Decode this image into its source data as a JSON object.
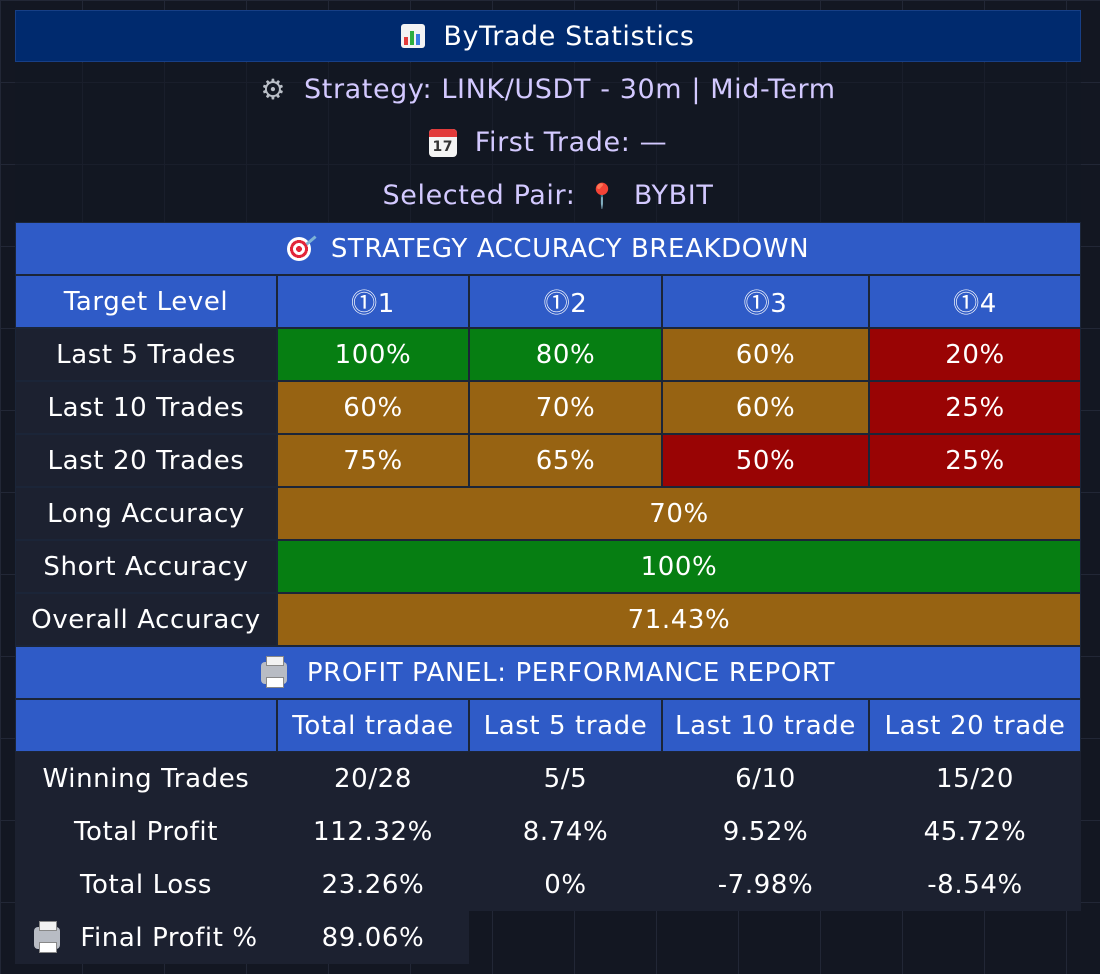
{
  "header": {
    "title": "ByTrade Statistics",
    "strategy": "Strategy: LINK/USDT - 30m | Mid-Term",
    "first_trade": "First Trade: —",
    "selected_pair_label": "Selected Pair:",
    "selected_pair_value": "BYBIT"
  },
  "accuracy": {
    "title": "STRATEGY ACCURACY BREAKDOWN",
    "columns": [
      "Target Level",
      "⓵1",
      "⓵2",
      "⓵3",
      "⓵4"
    ],
    "rows": [
      {
        "label": "Last 5 Trades",
        "values": [
          "100%",
          "80%",
          "60%",
          "20%"
        ]
      },
      {
        "label": "Last 10 Trades",
        "values": [
          "60%",
          "70%",
          "60%",
          "25%"
        ]
      },
      {
        "label": "Last 20 Trades",
        "values": [
          "75%",
          "65%",
          "50%",
          "25%"
        ]
      }
    ],
    "long_label": "Long Accuracy",
    "long_value": "70%",
    "short_label": "Short Accuracy",
    "short_value": "100%",
    "overall_label": "Overall Accuracy",
    "overall_value": "71.43%"
  },
  "profit": {
    "title": "PROFIT PANEL: PERFORMANCE REPORT",
    "columns": [
      "",
      "Total tradae",
      "Last 5 trade",
      "Last 10 trade",
      "Last 20 trade"
    ],
    "rows": [
      {
        "label": "Winning Trades",
        "values": [
          "20/28",
          "5/5",
          "6/10",
          "15/20"
        ]
      },
      {
        "label": "Total Profit",
        "values": [
          "112.32%",
          "8.74%",
          "9.52%",
          "45.72%"
        ]
      },
      {
        "label": "Total Loss",
        "values": [
          "23.26%",
          "0%",
          "-7.98%",
          "-8.54%"
        ]
      }
    ],
    "final_label": "Final Profit %",
    "final_value": "89.06%"
  },
  "icons": {
    "title": "bar-chart-icon",
    "strategy": "gear-icon",
    "first_trade": "calendar-icon",
    "selected_pair": "pin-icon",
    "accuracy": "target-icon",
    "profit": "printer-icon",
    "final": "printer-icon"
  },
  "calendar_icon_day": "17",
  "colors": {
    "title_bg": "#002a6e",
    "header_blue": "#2f5bc7",
    "green": "#067e12",
    "orange": "#976312",
    "red": "#990404",
    "label_bg": "#1c2130",
    "info_text": "#d3c9ff"
  }
}
